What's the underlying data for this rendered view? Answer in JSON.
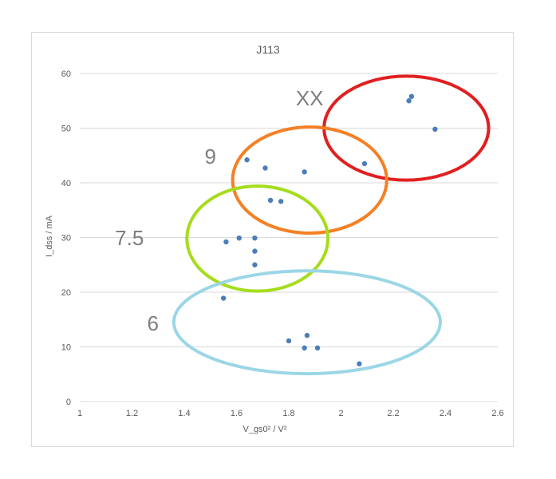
{
  "chart_data": {
    "type": "scatter",
    "title": "J113",
    "xlabel": "V_gs0² / V²",
    "ylabel": "I_dss / mA",
    "xlim": [
      1,
      2.6
    ],
    "ylim": [
      0,
      60
    ],
    "xticks": [
      1,
      1.2,
      1.4,
      1.6,
      1.8,
      2,
      2.2,
      2.4,
      2.6
    ],
    "yticks": [
      0,
      10,
      20,
      30,
      40,
      50,
      60
    ],
    "x_tick_labels": [
      "1",
      "1.2",
      "1.4",
      "1.6",
      "1.8",
      "2",
      "2.2",
      "2.4",
      "2.6"
    ],
    "y_tick_labels": [
      "0",
      "10",
      "20",
      "30",
      "40",
      "50",
      "60"
    ],
    "grid": "horizontal",
    "legend": "none",
    "marker_color": "#4a7ebb",
    "gridline_color": "#d9d9d9",
    "points": [
      {
        "x": 1.64,
        "y": 44.2
      },
      {
        "x": 1.71,
        "y": 42.7
      },
      {
        "x": 1.86,
        "y": 42.0
      },
      {
        "x": 2.09,
        "y": 43.5
      },
      {
        "x": 2.26,
        "y": 55.0
      },
      {
        "x": 2.27,
        "y": 55.8
      },
      {
        "x": 2.36,
        "y": 49.8
      },
      {
        "x": 1.73,
        "y": 36.8
      },
      {
        "x": 1.77,
        "y": 36.6
      },
      {
        "x": 1.56,
        "y": 29.2
      },
      {
        "x": 1.61,
        "y": 29.9
      },
      {
        "x": 1.67,
        "y": 29.9
      },
      {
        "x": 1.67,
        "y": 27.5
      },
      {
        "x": 1.67,
        "y": 25.0
      },
      {
        "x": 1.55,
        "y": 18.9
      },
      {
        "x": 1.8,
        "y": 11.1
      },
      {
        "x": 1.87,
        "y": 12.1
      },
      {
        "x": 1.86,
        "y": 9.8
      },
      {
        "x": 1.91,
        "y": 9.8
      },
      {
        "x": 2.07,
        "y": 6.9
      }
    ],
    "annotations": [
      {
        "text": "XX",
        "x": 1.88,
        "y": 55.5
      },
      {
        "text": "9",
        "x": 1.5,
        "y": 44.8
      },
      {
        "text": "7.5",
        "x": 1.19,
        "y": 29.9
      },
      {
        "text": "6",
        "x": 1.28,
        "y": 14.3
      }
    ],
    "groups": [
      {
        "label": "XX",
        "color": "#e02020",
        "cx": 2.25,
        "cy": 50.0,
        "rx": 0.315,
        "ry": 9.5
      },
      {
        "label": "9",
        "color": "#f58025",
        "cx": 1.88,
        "cy": 40.5,
        "rx": 0.295,
        "ry": 9.7
      },
      {
        "label": "7.5",
        "color": "#a6dc1e",
        "cx": 1.68,
        "cy": 29.8,
        "rx": 0.27,
        "ry": 9.6
      },
      {
        "label": "6",
        "color": "#9bd6e6",
        "cx": 1.87,
        "cy": 14.5,
        "rx": 0.51,
        "ry": 9.4
      }
    ]
  }
}
